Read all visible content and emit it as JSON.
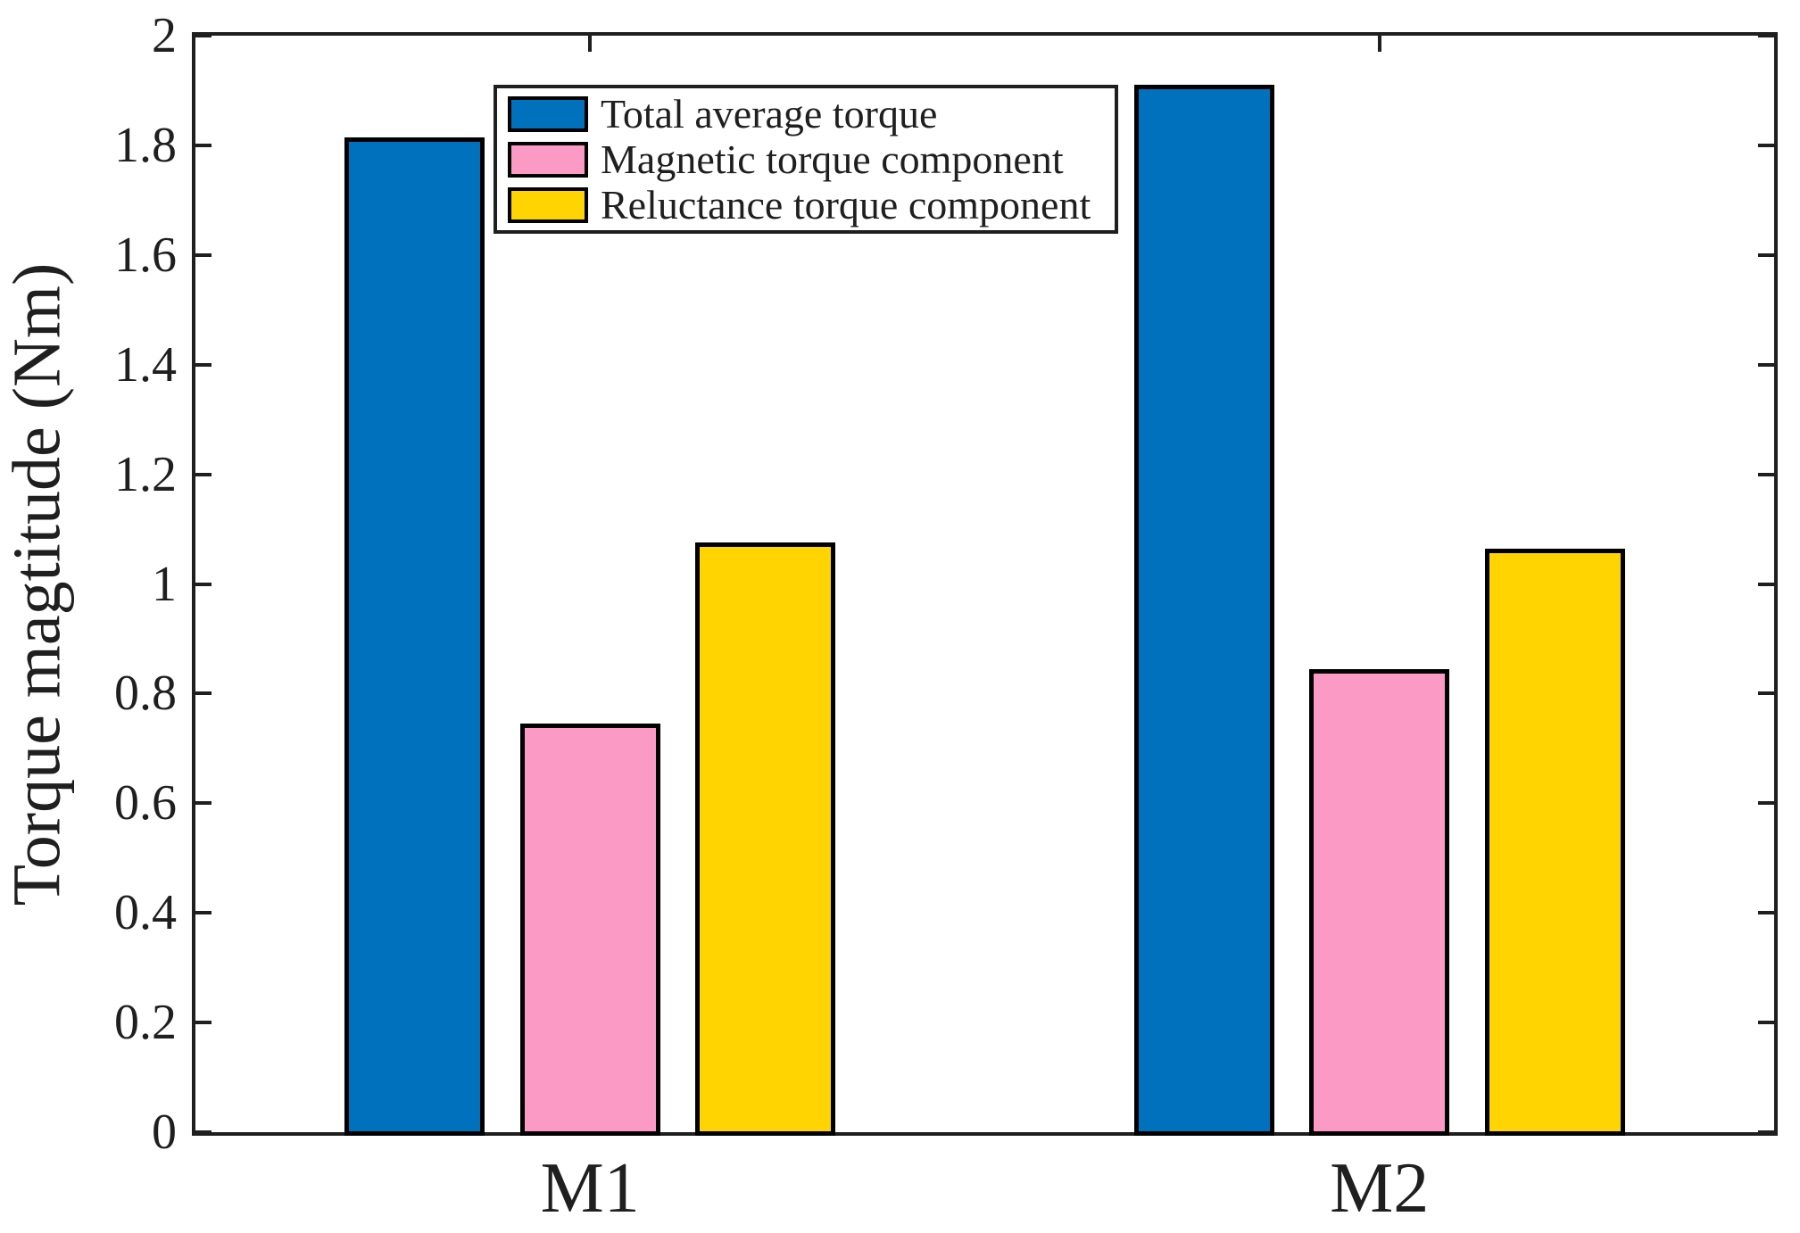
{
  "chart_data": {
    "type": "bar",
    "title": "",
    "xlabel": "",
    "ylabel": "Torque magtitude (Nm)",
    "categories": [
      "M1",
      "M2"
    ],
    "series": [
      {
        "name": "Total average torque",
        "color": "#0072BD",
        "values": [
          1.815,
          1.91
        ]
      },
      {
        "name": "Magnetic torque component",
        "color": "#FC9AC6",
        "values": [
          0.745,
          0.845
        ]
      },
      {
        "name": "Reluctance torque component",
        "color": "#FFD400",
        "values": [
          1.075,
          1.065
        ]
      }
    ],
    "ylim": [
      0,
      2
    ],
    "xlim": [
      0.5,
      2.5
    ],
    "yticks": [
      0,
      0.2,
      0.4,
      0.6,
      0.8,
      1,
      1.2,
      1.4,
      1.6,
      1.8,
      2
    ],
    "ytick_labels": [
      "0",
      "0.2",
      "0.4",
      "0.6",
      "0.8",
      "1",
      "1.2",
      "1.4",
      "1.6",
      "1.8",
      "2"
    ],
    "grid": false,
    "legend_position": "upper-left-inside",
    "axis_color": "#1f1f1f",
    "bar_edge_color": "#000000",
    "background_color": "#ffffff"
  }
}
